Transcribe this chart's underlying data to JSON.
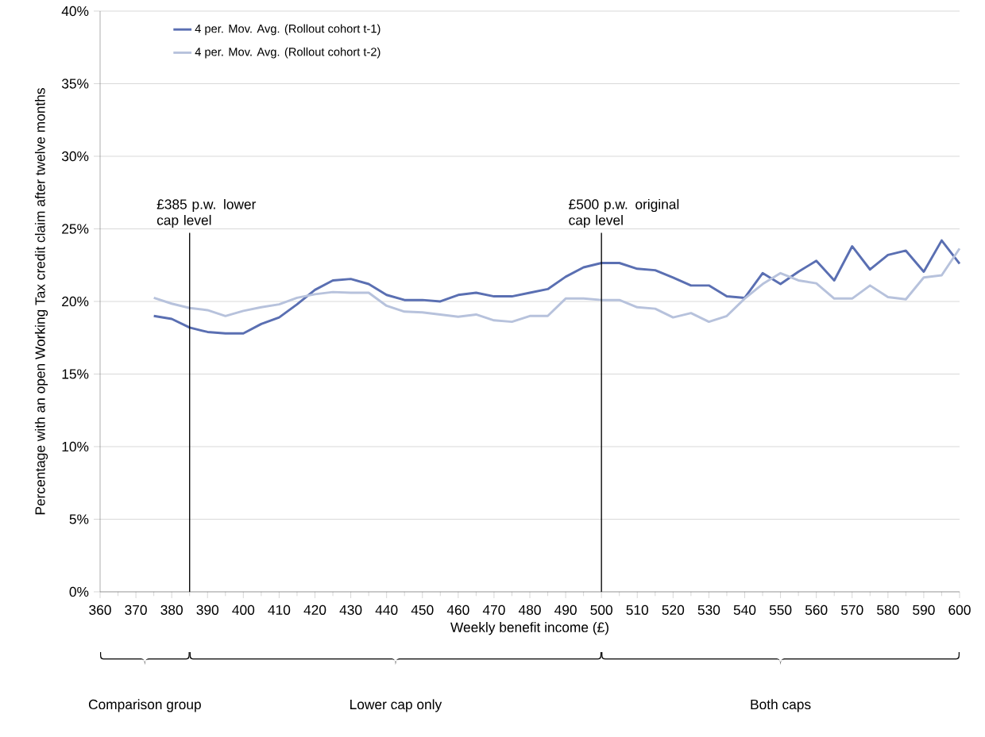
{
  "chart_data": {
    "type": "line",
    "xlabel": "Weekly benefit income (£)",
    "ylabel": "Percentage with an open Working Tax credit claim after twelve months",
    "x": [
      375,
      380,
      385,
      390,
      395,
      400,
      405,
      410,
      415,
      420,
      425,
      430,
      435,
      440,
      445,
      450,
      455,
      460,
      465,
      470,
      475,
      480,
      485,
      490,
      495,
      500,
      505,
      510,
      515,
      520,
      525,
      530,
      535,
      540,
      545,
      550,
      555,
      560,
      565,
      570,
      575,
      580,
      585,
      590,
      595,
      600
    ],
    "series": [
      {
        "name": "4 per. Mov. Avg. (Rollout cohort t-1)",
        "color": "#5a6fb2",
        "values": [
          19.0,
          18.8,
          18.2,
          17.9,
          17.8,
          17.8,
          18.45,
          18.9,
          19.8,
          20.8,
          21.45,
          21.55,
          21.2,
          20.45,
          20.1,
          20.1,
          20.0,
          20.45,
          20.6,
          20.35,
          20.35,
          20.6,
          20.85,
          21.7,
          22.35,
          22.65,
          22.65,
          22.25,
          22.15,
          21.65,
          21.1,
          21.1,
          20.35,
          20.25,
          21.95,
          21.2,
          22.05,
          22.8,
          21.45,
          23.8,
          22.2,
          23.2,
          23.5,
          22.05,
          24.2,
          22.6
        ]
      },
      {
        "name": "4 per. Mov. Avg. (Rollout cohort t-2)",
        "color": "#b7c2dc",
        "values": [
          20.25,
          19.85,
          19.55,
          19.4,
          19.0,
          19.35,
          19.6,
          19.8,
          20.25,
          20.5,
          20.65,
          20.6,
          20.6,
          19.7,
          19.3,
          19.25,
          19.1,
          18.95,
          19.1,
          18.7,
          18.6,
          19.0,
          19.0,
          20.2,
          20.2,
          20.1,
          20.1,
          19.6,
          19.5,
          18.9,
          19.2,
          18.6,
          19.0,
          20.2,
          21.2,
          21.95,
          21.45,
          21.25,
          20.2,
          20.2,
          21.1,
          20.3,
          20.15,
          21.65,
          21.8,
          23.65
        ]
      }
    ],
    "xlim": [
      360,
      600
    ],
    "xticks": [
      360,
      370,
      380,
      390,
      400,
      410,
      420,
      430,
      440,
      450,
      460,
      470,
      480,
      490,
      500,
      510,
      520,
      530,
      540,
      550,
      560,
      570,
      580,
      590,
      600
    ],
    "ylim": [
      0,
      40
    ],
    "yticks": [
      {
        "value": 0,
        "label": "0%"
      },
      {
        "value": 5,
        "label": "5%"
      },
      {
        "value": 10,
        "label": "10%"
      },
      {
        "value": 15,
        "label": "15%"
      },
      {
        "value": 20,
        "label": "20%"
      },
      {
        "value": 25,
        "label": "25%"
      },
      {
        "value": 30,
        "label": "30%"
      },
      {
        "value": 35,
        "label": "35%"
      },
      {
        "value": 40,
        "label": "40%"
      }
    ],
    "grid": "y",
    "legend": "top left",
    "marker": "none",
    "line_style": "solid",
    "ref_lines": [
      {
        "axis": "x",
        "value": 385,
        "label": "£385 p.w. lower cap level",
        "color": "#000000"
      },
      {
        "axis": "x",
        "value": 500,
        "label": "£500 p.w. original cap level",
        "color": "#000000"
      }
    ],
    "annotations": [
      "Comparison group",
      "Lower cap only",
      "Both caps"
    ]
  }
}
